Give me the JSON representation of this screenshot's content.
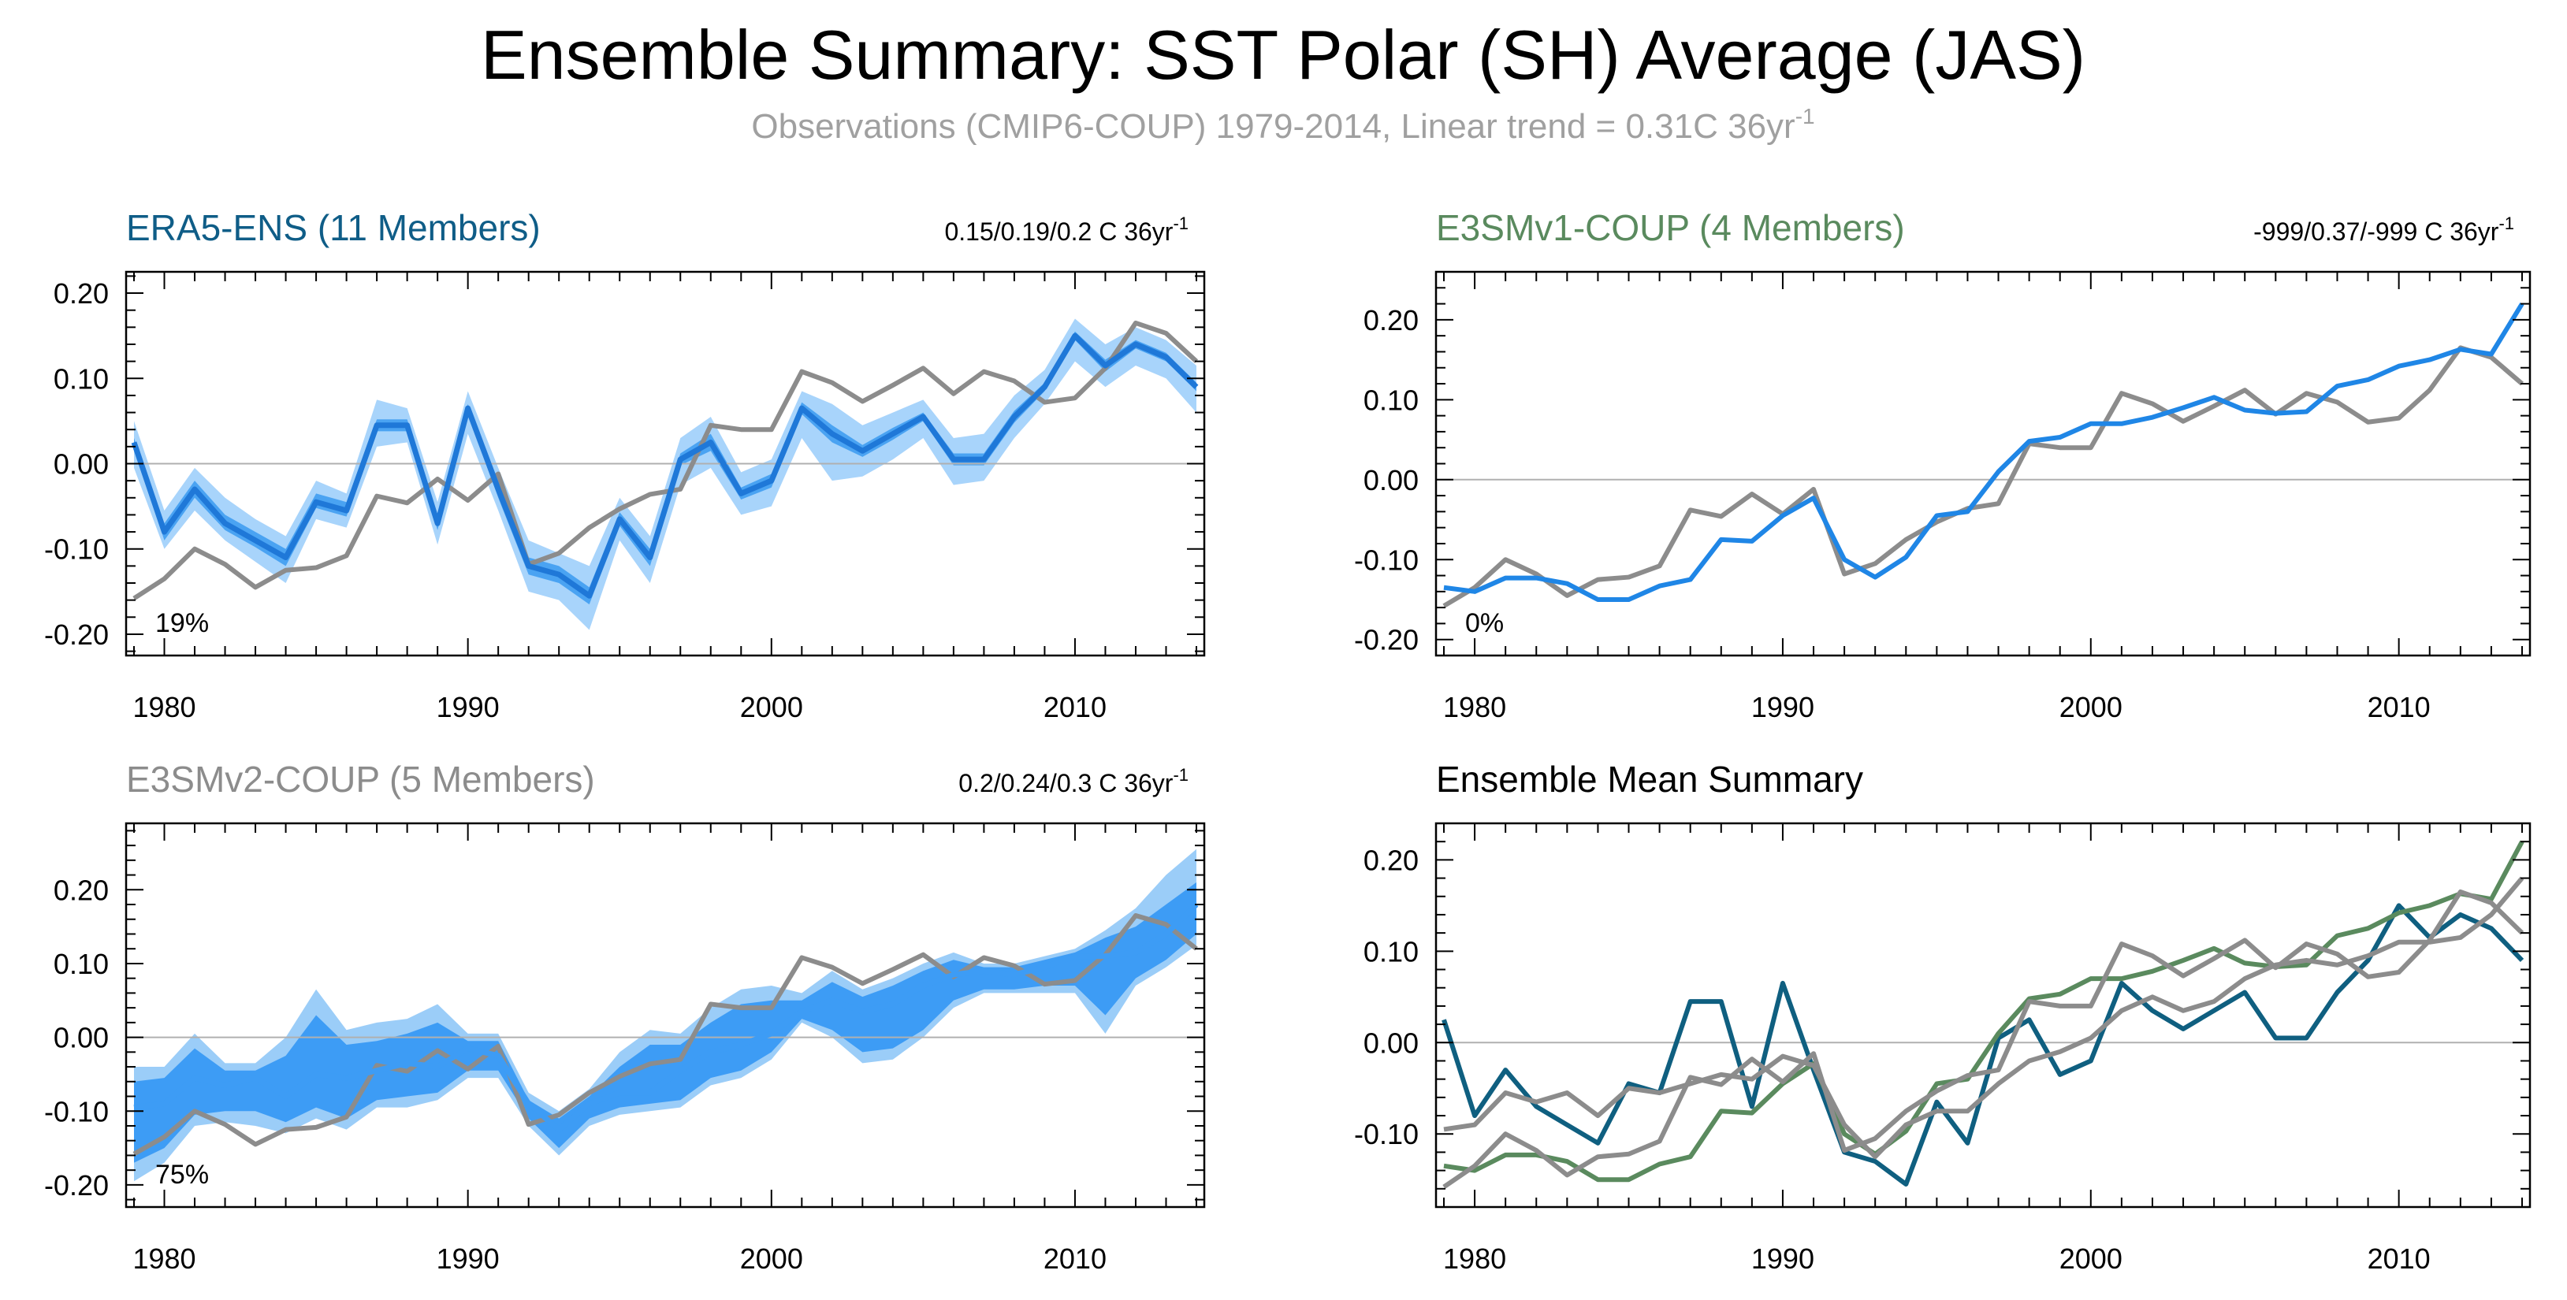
{
  "title": "Ensemble Summary: SST Polar (SH) Average (JAS)",
  "subtitle": {
    "text": "Observations (CMIP6-COUP) 1979-2014, Linear trend = 0.31C 36yr",
    "sup": "-1"
  },
  "colors": {
    "obs": "#8c8c8c",
    "era5": "#1f78d8",
    "era5_band_outer": "#a8d4fb",
    "era5_band_inner": "#4aa3f2",
    "e3smv1": "#1f86e6",
    "e3smv2_band": "#3d9cf5",
    "e3smv2_band_light": "#9bcdf8",
    "title_era5": "#0f5d87",
    "title_e3smv1": "#5a8a5e",
    "title_e3smv2": "#8c8c8c",
    "mean_era5": "#0f5f80",
    "mean_e3smv1": "#5a8a5e",
    "mean_e3smv2": "#8c8c8c"
  },
  "chart_data": [
    {
      "id": "era5",
      "type": "line",
      "title": "ERA5-ENS (11 Members)",
      "trend_text": "0.15/0.19/0.2 C 36yr",
      "trend_sup": "-1",
      "percent_label": "19%",
      "xlim": [
        1979,
        2014
      ],
      "ylim": [
        -0.225,
        0.225
      ],
      "yticks": [
        -0.2,
        -0.1,
        0.0,
        0.1,
        0.2
      ],
      "ytick_labels": [
        "-0.20",
        "-0.10",
        "0.00",
        "0.10",
        "0.20"
      ],
      "xticks": [
        1980,
        1990,
        2000,
        2010
      ],
      "xtick_labels": [
        "1980",
        "1990",
        "2000",
        "2010"
      ],
      "x": [
        1979,
        1980,
        1981,
        1982,
        1983,
        1984,
        1985,
        1986,
        1987,
        1988,
        1989,
        1990,
        1991,
        1992,
        1993,
        1994,
        1995,
        1996,
        1997,
        1998,
        1999,
        2000,
        2001,
        2002,
        2003,
        2004,
        2005,
        2006,
        2007,
        2008,
        2009,
        2010,
        2011,
        2012,
        2013,
        2014
      ],
      "series": [
        {
          "values": [
            0.025,
            -0.08,
            -0.03,
            -0.07,
            -0.09,
            -0.11,
            -0.045,
            -0.055,
            0.045,
            0.045,
            -0.07,
            0.065,
            -0.03,
            -0.12,
            -0.13,
            -0.155,
            -0.065,
            -0.11,
            0.005,
            0.025,
            -0.035,
            -0.02,
            0.065,
            0.035,
            0.015,
            0.035,
            0.055,
            0.005,
            0.005,
            0.055,
            0.09,
            0.15,
            0.115,
            0.14,
            0.125,
            0.09
          ]
        },
        {
          "name": "Observations",
          "values": [
            -0.158,
            -0.135,
            -0.1,
            -0.118,
            -0.145,
            -0.125,
            -0.122,
            -0.108,
            -0.038,
            -0.046,
            -0.018,
            -0.043,
            -0.012,
            -0.118,
            -0.105,
            -0.075,
            -0.053,
            -0.036,
            -0.03,
            0.045,
            0.04,
            0.04,
            0.108,
            0.095,
            0.073,
            0.092,
            0.112,
            0.082,
            0.108,
            0.097,
            0.072,
            0.077,
            0.112,
            0.165,
            0.153,
            0.12
          ]
        }
      ],
      "band_outer": {
        "upper": [
          0.05,
          -0.055,
          -0.005,
          -0.04,
          -0.065,
          -0.085,
          -0.02,
          -0.035,
          0.075,
          0.065,
          -0.045,
          0.085,
          -0.005,
          -0.09,
          -0.105,
          -0.12,
          -0.04,
          -0.085,
          0.03,
          0.055,
          -0.01,
          0.005,
          0.085,
          0.07,
          0.045,
          0.06,
          0.075,
          0.03,
          0.035,
          0.08,
          0.11,
          0.17,
          0.14,
          0.16,
          0.145,
          0.115
        ],
        "lower": [
          -0.005,
          -0.1,
          -0.055,
          -0.09,
          -0.115,
          -0.14,
          -0.065,
          -0.075,
          0.02,
          0.025,
          -0.095,
          0.035,
          -0.055,
          -0.15,
          -0.16,
          -0.195,
          -0.09,
          -0.14,
          -0.025,
          -0.005,
          -0.06,
          -0.05,
          0.03,
          -0.02,
          -0.015,
          0.005,
          0.03,
          -0.025,
          -0.02,
          0.03,
          0.07,
          0.12,
          0.09,
          0.115,
          0.1,
          0.06
        ]
      },
      "band_inner": {
        "upper": [
          0.03,
          -0.07,
          -0.02,
          -0.06,
          -0.08,
          -0.1,
          -0.035,
          -0.045,
          0.052,
          0.052,
          -0.062,
          0.07,
          -0.02,
          -0.11,
          -0.12,
          -0.145,
          -0.057,
          -0.1,
          0.012,
          0.035,
          -0.028,
          -0.012,
          0.072,
          0.045,
          0.022,
          0.042,
          0.06,
          0.012,
          0.012,
          0.062,
          0.095,
          0.155,
          0.122,
          0.145,
          0.13,
          0.095
        ],
        "lower": [
          0.018,
          -0.09,
          -0.04,
          -0.078,
          -0.098,
          -0.12,
          -0.052,
          -0.062,
          0.038,
          0.038,
          -0.078,
          0.058,
          -0.04,
          -0.13,
          -0.14,
          -0.165,
          -0.073,
          -0.12,
          -0.002,
          0.015,
          -0.042,
          -0.028,
          0.058,
          0.025,
          0.008,
          0.028,
          0.05,
          -0.002,
          -0.002,
          0.048,
          0.085,
          0.145,
          0.108,
          0.135,
          0.12,
          0.085
        ]
      }
    },
    {
      "id": "e3smv1",
      "type": "line",
      "title": "E3SMv1-COUP (4 Members)",
      "trend_text": "-999/0.37/-999 C 36yr",
      "trend_sup": "-1",
      "percent_label": "0%",
      "xlim": [
        1979,
        2014
      ],
      "ylim": [
        -0.22,
        0.26
      ],
      "yticks": [
        -0.2,
        -0.1,
        0.0,
        0.1,
        0.2
      ],
      "ytick_labels": [
        "-0.20",
        "-0.10",
        "0.00",
        "0.10",
        "0.20"
      ],
      "xticks": [
        1980,
        1990,
        2000,
        2010
      ],
      "xtick_labels": [
        "1980",
        "1990",
        "2000",
        "2010"
      ],
      "x": [
        1979,
        1980,
        1981,
        1982,
        1983,
        1984,
        1985,
        1986,
        1987,
        1988,
        1989,
        1990,
        1991,
        1992,
        1993,
        1994,
        1995,
        1996,
        1997,
        1998,
        1999,
        2000,
        2001,
        2002,
        2003,
        2004,
        2005,
        2006,
        2007,
        2008,
        2009,
        2010,
        2011,
        2012,
        2013,
        2014
      ],
      "series": [
        {
          "values": [
            -0.135,
            -0.14,
            -0.123,
            -0.123,
            -0.13,
            -0.15,
            -0.15,
            -0.133,
            -0.125,
            -0.075,
            -0.077,
            -0.045,
            -0.023,
            -0.1,
            -0.122,
            -0.097,
            -0.045,
            -0.04,
            0.01,
            0.048,
            0.053,
            0.07,
            0.07,
            0.078,
            0.09,
            0.103,
            0.087,
            0.083,
            0.085,
            0.117,
            0.125,
            0.142,
            0.15,
            0.163,
            0.157,
            0.22
          ]
        },
        {
          "name": "Observations",
          "values": [
            -0.158,
            -0.135,
            -0.1,
            -0.118,
            -0.145,
            -0.125,
            -0.122,
            -0.108,
            -0.038,
            -0.046,
            -0.018,
            -0.043,
            -0.012,
            -0.118,
            -0.105,
            -0.075,
            -0.053,
            -0.036,
            -0.03,
            0.045,
            0.04,
            0.04,
            0.108,
            0.095,
            0.073,
            0.092,
            0.112,
            0.082,
            0.108,
            0.097,
            0.072,
            0.077,
            0.112,
            0.165,
            0.153,
            0.12
          ]
        }
      ]
    },
    {
      "id": "e3smv2",
      "type": "line",
      "title": "E3SMv2-COUP (5 Members)",
      "trend_text": "0.2/0.24/0.3 C 36yr",
      "trend_sup": "-1",
      "percent_label": "75%",
      "xlim": [
        1979,
        2014
      ],
      "ylim": [
        -0.23,
        0.29
      ],
      "yticks": [
        -0.2,
        -0.1,
        0.0,
        0.1,
        0.2
      ],
      "ytick_labels": [
        "-0.20",
        "-0.10",
        "0.00",
        "0.10",
        "0.20"
      ],
      "xticks": [
        1980,
        1990,
        2000,
        2010
      ],
      "xtick_labels": [
        "1980",
        "1990",
        "2000",
        "2010"
      ],
      "x": [
        1979,
        1980,
        1981,
        1982,
        1983,
        1984,
        1985,
        1986,
        1987,
        1988,
        1989,
        1990,
        1991,
        1992,
        1993,
        1994,
        1995,
        1996,
        1997,
        1998,
        1999,
        2000,
        2001,
        2002,
        2003,
        2004,
        2005,
        2006,
        2007,
        2008,
        2009,
        2010,
        2011,
        2012,
        2013,
        2014
      ],
      "series": [
        {
          "values": [
            -0.095,
            -0.09,
            -0.055,
            -0.065,
            -0.055,
            -0.08,
            -0.05,
            -0.055,
            -0.045,
            -0.035,
            -0.04,
            -0.015,
            -0.025,
            -0.09,
            -0.125,
            -0.09,
            -0.075,
            -0.075,
            -0.045,
            -0.02,
            -0.01,
            0.005,
            0.035,
            0.05,
            0.035,
            0.045,
            0.07,
            0.085,
            0.09,
            0.085,
            0.095,
            0.11,
            0.11,
            0.115,
            0.14,
            0.18
          ]
        },
        {
          "name": "Observations",
          "values": [
            -0.158,
            -0.135,
            -0.1,
            -0.118,
            -0.145,
            -0.125,
            -0.122,
            -0.108,
            -0.038,
            -0.046,
            -0.018,
            -0.043,
            -0.012,
            -0.118,
            -0.105,
            -0.075,
            -0.053,
            -0.036,
            -0.03,
            0.045,
            0.04,
            0.04,
            0.108,
            0.095,
            0.073,
            0.092,
            0.112,
            0.082,
            0.108,
            0.097,
            0.072,
            0.077,
            0.112,
            0.165,
            0.153,
            0.12
          ]
        }
      ],
      "band_outer": {
        "upper": [
          -0.04,
          -0.04,
          0.005,
          -0.035,
          -0.035,
          0.0,
          0.065,
          0.01,
          0.02,
          0.025,
          0.045,
          0.005,
          0.005,
          -0.075,
          -0.1,
          -0.07,
          -0.02,
          0.01,
          0.005,
          0.04,
          0.065,
          0.07,
          0.06,
          0.09,
          0.065,
          0.08,
          0.1,
          0.115,
          0.1,
          0.1,
          0.11,
          0.12,
          0.145,
          0.175,
          0.22,
          0.255
        ],
        "lower": [
          -0.195,
          -0.17,
          -0.12,
          -0.115,
          -0.12,
          -0.13,
          -0.11,
          -0.125,
          -0.095,
          -0.095,
          -0.085,
          -0.055,
          -0.055,
          -0.12,
          -0.16,
          -0.12,
          -0.105,
          -0.1,
          -0.095,
          -0.065,
          -0.055,
          -0.03,
          0.02,
          0.0,
          -0.035,
          -0.03,
          0.0,
          0.04,
          0.06,
          0.06,
          0.06,
          0.06,
          0.005,
          0.07,
          0.095,
          0.125
        ]
      },
      "band_inner": {
        "upper": [
          -0.06,
          -0.055,
          -0.015,
          -0.045,
          -0.045,
          -0.025,
          0.03,
          -0.01,
          -0.005,
          0.005,
          0.02,
          -0.005,
          -0.005,
          -0.085,
          -0.11,
          -0.08,
          -0.04,
          -0.01,
          -0.01,
          0.02,
          0.045,
          0.05,
          0.05,
          0.075,
          0.055,
          0.07,
          0.09,
          0.105,
          0.095,
          0.095,
          0.105,
          0.115,
          0.135,
          0.15,
          0.18,
          0.21
        ],
        "lower": [
          -0.17,
          -0.15,
          -0.105,
          -0.1,
          -0.1,
          -0.115,
          -0.095,
          -0.11,
          -0.085,
          -0.08,
          -0.075,
          -0.045,
          -0.045,
          -0.11,
          -0.15,
          -0.11,
          -0.095,
          -0.09,
          -0.085,
          -0.055,
          -0.045,
          -0.02,
          0.025,
          0.01,
          -0.02,
          -0.015,
          0.01,
          0.05,
          0.065,
          0.065,
          0.07,
          0.07,
          0.03,
          0.08,
          0.105,
          0.14
        ]
      }
    },
    {
      "id": "mean",
      "type": "line",
      "title": "Ensemble Mean Summary",
      "xlim": [
        1979,
        2014
      ],
      "ylim": [
        -0.18,
        0.24
      ],
      "yticks": [
        -0.1,
        0.0,
        0.1,
        0.2
      ],
      "ytick_labels": [
        "-0.10",
        "0.00",
        "0.10",
        "0.20"
      ],
      "xticks": [
        1980,
        1990,
        2000,
        2010
      ],
      "xtick_labels": [
        "1980",
        "1990",
        "2000",
        "2010"
      ],
      "x": [
        1979,
        1980,
        1981,
        1982,
        1983,
        1984,
        1985,
        1986,
        1987,
        1988,
        1989,
        1990,
        1991,
        1992,
        1993,
        1994,
        1995,
        1996,
        1997,
        1998,
        1999,
        2000,
        2001,
        2002,
        2003,
        2004,
        2005,
        2006,
        2007,
        2008,
        2009,
        2010,
        2011,
        2012,
        2013,
        2014
      ],
      "series": [
        {
          "values": [
            -0.158,
            -0.135,
            -0.1,
            -0.118,
            -0.145,
            -0.125,
            -0.122,
            -0.108,
            -0.038,
            -0.046,
            -0.018,
            -0.043,
            -0.012,
            -0.118,
            -0.105,
            -0.075,
            -0.053,
            -0.036,
            -0.03,
            0.045,
            0.04,
            0.04,
            0.108,
            0.095,
            0.073,
            0.092,
            0.112,
            0.082,
            0.108,
            0.097,
            0.072,
            0.077,
            0.112,
            0.165,
            0.153,
            0.12
          ]
        },
        {
          "values": [
            -0.095,
            -0.09,
            -0.055,
            -0.065,
            -0.055,
            -0.08,
            -0.05,
            -0.055,
            -0.045,
            -0.035,
            -0.04,
            -0.015,
            -0.025,
            -0.09,
            -0.125,
            -0.09,
            -0.075,
            -0.075,
            -0.045,
            -0.02,
            -0.01,
            0.005,
            0.035,
            0.05,
            0.035,
            0.045,
            0.07,
            0.085,
            0.09,
            0.085,
            0.095,
            0.11,
            0.11,
            0.115,
            0.14,
            0.18
          ]
        },
        {
          "values": [
            -0.135,
            -0.14,
            -0.123,
            -0.123,
            -0.13,
            -0.15,
            -0.15,
            -0.133,
            -0.125,
            -0.075,
            -0.077,
            -0.045,
            -0.023,
            -0.1,
            -0.122,
            -0.097,
            -0.045,
            -0.04,
            0.01,
            0.048,
            0.053,
            0.07,
            0.07,
            0.078,
            0.09,
            0.103,
            0.087,
            0.083,
            0.085,
            0.117,
            0.125,
            0.142,
            0.15,
            0.163,
            0.157,
            0.22
          ]
        },
        {
          "values": [
            0.025,
            -0.08,
            -0.03,
            -0.07,
            -0.09,
            -0.11,
            -0.045,
            -0.055,
            0.045,
            0.045,
            -0.07,
            0.065,
            -0.03,
            -0.12,
            -0.13,
            -0.155,
            -0.065,
            -0.11,
            0.005,
            0.025,
            -0.035,
            -0.02,
            0.065,
            0.035,
            0.015,
            0.035,
            0.055,
            0.005,
            0.005,
            0.055,
            0.09,
            0.15,
            0.115,
            0.14,
            0.125,
            0.09
          ]
        }
      ]
    }
  ]
}
